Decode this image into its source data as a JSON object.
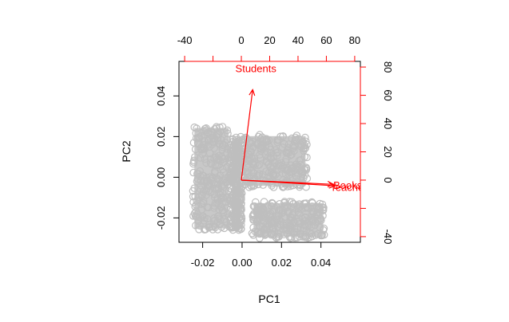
{
  "chart_data": {
    "type": "biplot",
    "title": "",
    "xlabel": "PC1",
    "ylabel": "PC2",
    "xlim": [
      -0.032,
      0.06
    ],
    "ylim": [
      -0.032,
      0.057
    ],
    "x_ticks": [
      -0.02,
      0.0,
      0.02,
      0.04
    ],
    "x_tick_labels": [
      "-0.02",
      "0.00",
      "0.02",
      "0.04"
    ],
    "y_ticks": [
      -0.02,
      0.0,
      0.02,
      0.04
    ],
    "y_tick_labels": [
      "-0.02",
      "0.00",
      "0.02",
      "0.04"
    ],
    "loadings_xlim": [
      -44,
      84
    ],
    "loadings_ylim": [
      -44,
      84
    ],
    "top_ticks": [
      -40,
      -20,
      0,
      20,
      40,
      60,
      80
    ],
    "top_tick_labels": [
      "-40",
      "",
      "0",
      "20",
      "40",
      "60",
      "80"
    ],
    "right_ticks": [
      -40,
      -20,
      0,
      20,
      40,
      60,
      80
    ],
    "right_tick_labels": [
      "-40",
      "",
      "0",
      "20",
      "40",
      "60",
      "80"
    ],
    "point_color": "#bebebe",
    "arrow_color": "#ff0000",
    "score_clusters": [
      {
        "x_range": [
          -0.025,
          -0.006
        ],
        "y_range": [
          -0.026,
          0.025
        ]
      },
      {
        "x_range": [
          -0.006,
          0.0
        ],
        "y_range": [
          -0.026,
          0.02
        ]
      },
      {
        "x_range": [
          0.0,
          0.033
        ],
        "y_range": [
          -0.005,
          0.021
        ]
      },
      {
        "x_range": [
          0.005,
          0.042
        ],
        "y_range": [
          -0.03,
          -0.012
        ]
      }
    ],
    "loadings": [
      {
        "name": "Students",
        "x": 8,
        "y": 64
      },
      {
        "name": "Teachers",
        "x": 65,
        "y": -3
      },
      {
        "name": "Books",
        "x": 66,
        "y": -4
      }
    ],
    "arrow_labels": [
      "Students",
      "Teachers",
      "Books"
    ],
    "overlap_label": "Teachers / Books"
  }
}
